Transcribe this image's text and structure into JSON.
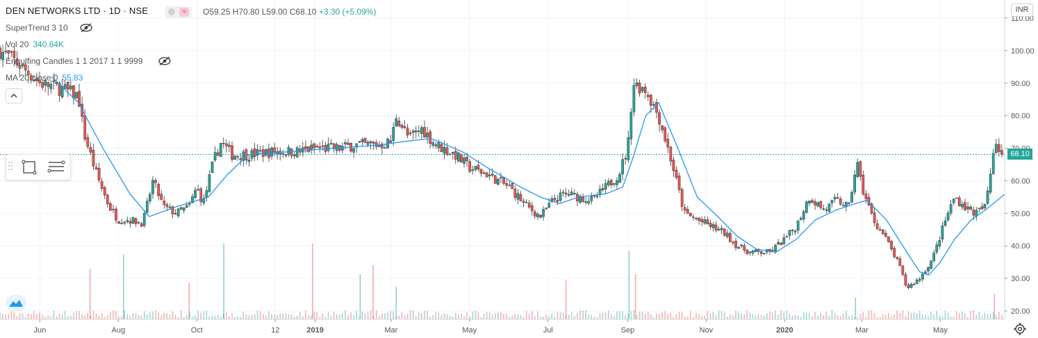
{
  "header": {
    "symbol": "DEN NETWORKS LTD · 1D · NSE",
    "ohlc_prefix": "O59.25  H70.80  L59.00  C68.10",
    "change": "+3.30 (+5.09%)"
  },
  "indicators": [
    {
      "label": "SuperTrend 3 10",
      "value": "",
      "hidden": true
    },
    {
      "label": "Vol 20",
      "value": "340.84K",
      "value_color": "#26a69a",
      "hidden": false
    },
    {
      "label": "Engulfing Candles 1 1 2017 1 1 9999",
      "value": "",
      "hidden": true
    },
    {
      "label": "MA 20 close 0",
      "value": "55.83",
      "value_color": "#2196f3",
      "hidden": false
    }
  ],
  "price_axis": {
    "currency": "INR",
    "last_price": "68.10",
    "last_price_color": "#26a69a"
  },
  "icons": [
    "visibility-off-icon",
    "collapse-up-icon",
    "rectangle-tool-icon",
    "lines-tool-icon",
    "tradingview-logo-icon",
    "settings-gear-icon",
    "drag-handle-icon"
  ],
  "colors": {
    "up": "#26a69a",
    "down": "#ef5350",
    "ma": "#2196f3",
    "grid": "#f0f3fa"
  },
  "chart_data": {
    "type": "candlestick",
    "ylim": [
      20,
      110
    ],
    "yticks": [
      20,
      30,
      40,
      50,
      60,
      70,
      80,
      90,
      100,
      110
    ],
    "ytick_labels": [
      "20.00",
      "30.00",
      "40.00",
      "50.00",
      "60.00",
      "70.00",
      "80.00",
      "90.00",
      "100.00",
      "110.00"
    ],
    "xtick_labels": [
      "Jun",
      "Aug",
      "Oct",
      "12",
      "2019",
      "Mar",
      "May",
      "Jul",
      "Sep",
      "Nov",
      "2020",
      "Mar",
      "May"
    ],
    "xtick_dates": [
      "2018-06-01",
      "2018-08-01",
      "2018-10-01",
      "2018-12-01",
      "2019-01-01",
      "2019-03-01",
      "2019-05-01",
      "2019-07-01",
      "2019-09-01",
      "2019-11-01",
      "2020-01-01",
      "2020-03-01",
      "2020-05-01"
    ],
    "x_range": [
      "2018-05-01",
      "2020-06-20"
    ],
    "close_series": [
      [
        "2018-05-01",
        100
      ],
      [
        "2018-05-15",
        96
      ],
      [
        "2018-06-01",
        90
      ],
      [
        "2018-06-20",
        88
      ],
      [
        "2018-07-01",
        86
      ],
      [
        "2018-07-05",
        75
      ],
      [
        "2018-07-15",
        62
      ],
      [
        "2018-07-25",
        52
      ],
      [
        "2018-08-01",
        48
      ],
      [
        "2018-08-10",
        48
      ],
      [
        "2018-08-20",
        47
      ],
      [
        "2018-08-28",
        60
      ],
      [
        "2018-09-05",
        52
      ],
      [
        "2018-09-15",
        50
      ],
      [
        "2018-09-25",
        52
      ],
      [
        "2018-10-01",
        58
      ],
      [
        "2018-10-06",
        53
      ],
      [
        "2018-10-14",
        66
      ],
      [
        "2018-10-20",
        72
      ],
      [
        "2018-10-28",
        68
      ],
      [
        "2018-11-10",
        68
      ],
      [
        "2018-12-01",
        69
      ],
      [
        "2018-12-20",
        69
      ],
      [
        "2019-01-01",
        70
      ],
      [
        "2019-01-20",
        70
      ],
      [
        "2019-02-01",
        71
      ],
      [
        "2019-02-20",
        71
      ],
      [
        "2019-03-01",
        72
      ],
      [
        "2019-03-05",
        80
      ],
      [
        "2019-03-15",
        73
      ],
      [
        "2019-03-25",
        76
      ],
      [
        "2019-04-05",
        71
      ],
      [
        "2019-04-20",
        68
      ],
      [
        "2019-05-01",
        64
      ],
      [
        "2019-05-15",
        62
      ],
      [
        "2019-06-01",
        58
      ],
      [
        "2019-06-15",
        52
      ],
      [
        "2019-06-25",
        49
      ],
      [
        "2019-07-05",
        54
      ],
      [
        "2019-07-15",
        56
      ],
      [
        "2019-07-25",
        55
      ],
      [
        "2019-08-05",
        54
      ],
      [
        "2019-08-15",
        58
      ],
      [
        "2019-08-25",
        62
      ],
      [
        "2019-09-01",
        70
      ],
      [
        "2019-09-05",
        90
      ],
      [
        "2019-09-15",
        88
      ],
      [
        "2019-09-25",
        80
      ],
      [
        "2019-10-05",
        66
      ],
      [
        "2019-10-15",
        50
      ],
      [
        "2019-10-25",
        48
      ],
      [
        "2019-11-05",
        46
      ],
      [
        "2019-11-15",
        44
      ],
      [
        "2019-11-25",
        40
      ],
      [
        "2019-12-05",
        38
      ],
      [
        "2019-12-20",
        38
      ],
      [
        "2020-01-01",
        42
      ],
      [
        "2020-01-10",
        46
      ],
      [
        "2020-01-20",
        55
      ],
      [
        "2020-02-01",
        51
      ],
      [
        "2020-02-10",
        54
      ],
      [
        "2020-02-20",
        52
      ],
      [
        "2020-02-26",
        66
      ],
      [
        "2020-03-01",
        58
      ],
      [
        "2020-03-10",
        48
      ],
      [
        "2020-03-20",
        42
      ],
      [
        "2020-03-30",
        34
      ],
      [
        "2020-04-05",
        27
      ],
      [
        "2020-04-15",
        30
      ],
      [
        "2020-04-25",
        36
      ],
      [
        "2020-05-05",
        48
      ],
      [
        "2020-05-12",
        55
      ],
      [
        "2020-05-20",
        52
      ],
      [
        "2020-05-28",
        50
      ],
      [
        "2020-06-05",
        52
      ],
      [
        "2020-06-10",
        65
      ],
      [
        "2020-06-12",
        73
      ],
      [
        "2020-06-18",
        68.1
      ]
    ],
    "ma_series": [
      [
        "2018-06-10",
        92
      ],
      [
        "2018-07-01",
        84
      ],
      [
        "2018-07-20",
        70
      ],
      [
        "2018-08-10",
        56
      ],
      [
        "2018-08-25",
        49
      ],
      [
        "2018-09-15",
        52
      ],
      [
        "2018-10-10",
        55
      ],
      [
        "2018-10-25",
        62
      ],
      [
        "2018-11-10",
        68
      ],
      [
        "2018-12-15",
        69
      ],
      [
        "2019-01-15",
        70
      ],
      [
        "2019-02-20",
        71
      ],
      [
        "2019-03-10",
        72
      ],
      [
        "2019-04-01",
        73
      ],
      [
        "2019-04-25",
        69
      ],
      [
        "2019-05-15",
        64
      ],
      [
        "2019-06-10",
        58
      ],
      [
        "2019-06-25",
        55
      ],
      [
        "2019-07-10",
        53
      ],
      [
        "2019-07-25",
        55
      ],
      [
        "2019-08-15",
        56
      ],
      [
        "2019-08-28",
        58
      ],
      [
        "2019-09-05",
        67
      ],
      [
        "2019-09-15",
        80
      ],
      [
        "2019-09-25",
        84
      ],
      [
        "2019-10-10",
        70
      ],
      [
        "2019-10-25",
        55
      ],
      [
        "2019-11-10",
        49
      ],
      [
        "2019-11-25",
        43
      ],
      [
        "2019-12-10",
        39
      ],
      [
        "2019-12-25",
        38
      ],
      [
        "2020-01-10",
        42
      ],
      [
        "2020-01-25",
        48
      ],
      [
        "2020-02-10",
        51
      ],
      [
        "2020-02-25",
        53
      ],
      [
        "2020-03-05",
        54
      ],
      [
        "2020-03-20",
        48
      ],
      [
        "2020-04-05",
        38
      ],
      [
        "2020-04-15",
        32
      ],
      [
        "2020-04-22",
        31
      ],
      [
        "2020-05-01",
        35
      ],
      [
        "2020-05-12",
        42
      ],
      [
        "2020-05-25",
        48
      ],
      [
        "2020-06-05",
        51
      ],
      [
        "2020-06-20",
        55.83
      ]
    ],
    "volume_peaks": [
      [
        "2018-07-10",
        0.28
      ],
      [
        "2018-08-05",
        0.36
      ],
      [
        "2018-09-25",
        0.2
      ],
      [
        "2018-10-22",
        0.42
      ],
      [
        "2018-12-30",
        0.42
      ],
      [
        "2019-02-05",
        0.25
      ],
      [
        "2019-02-15",
        0.3
      ],
      [
        "2019-03-05",
        0.18
      ],
      [
        "2019-07-15",
        0.22
      ],
      [
        "2019-09-02",
        0.38
      ],
      [
        "2019-09-07",
        0.25
      ],
      [
        "2020-02-25",
        0.12
      ],
      [
        "2020-06-12",
        0.14
      ]
    ]
  }
}
